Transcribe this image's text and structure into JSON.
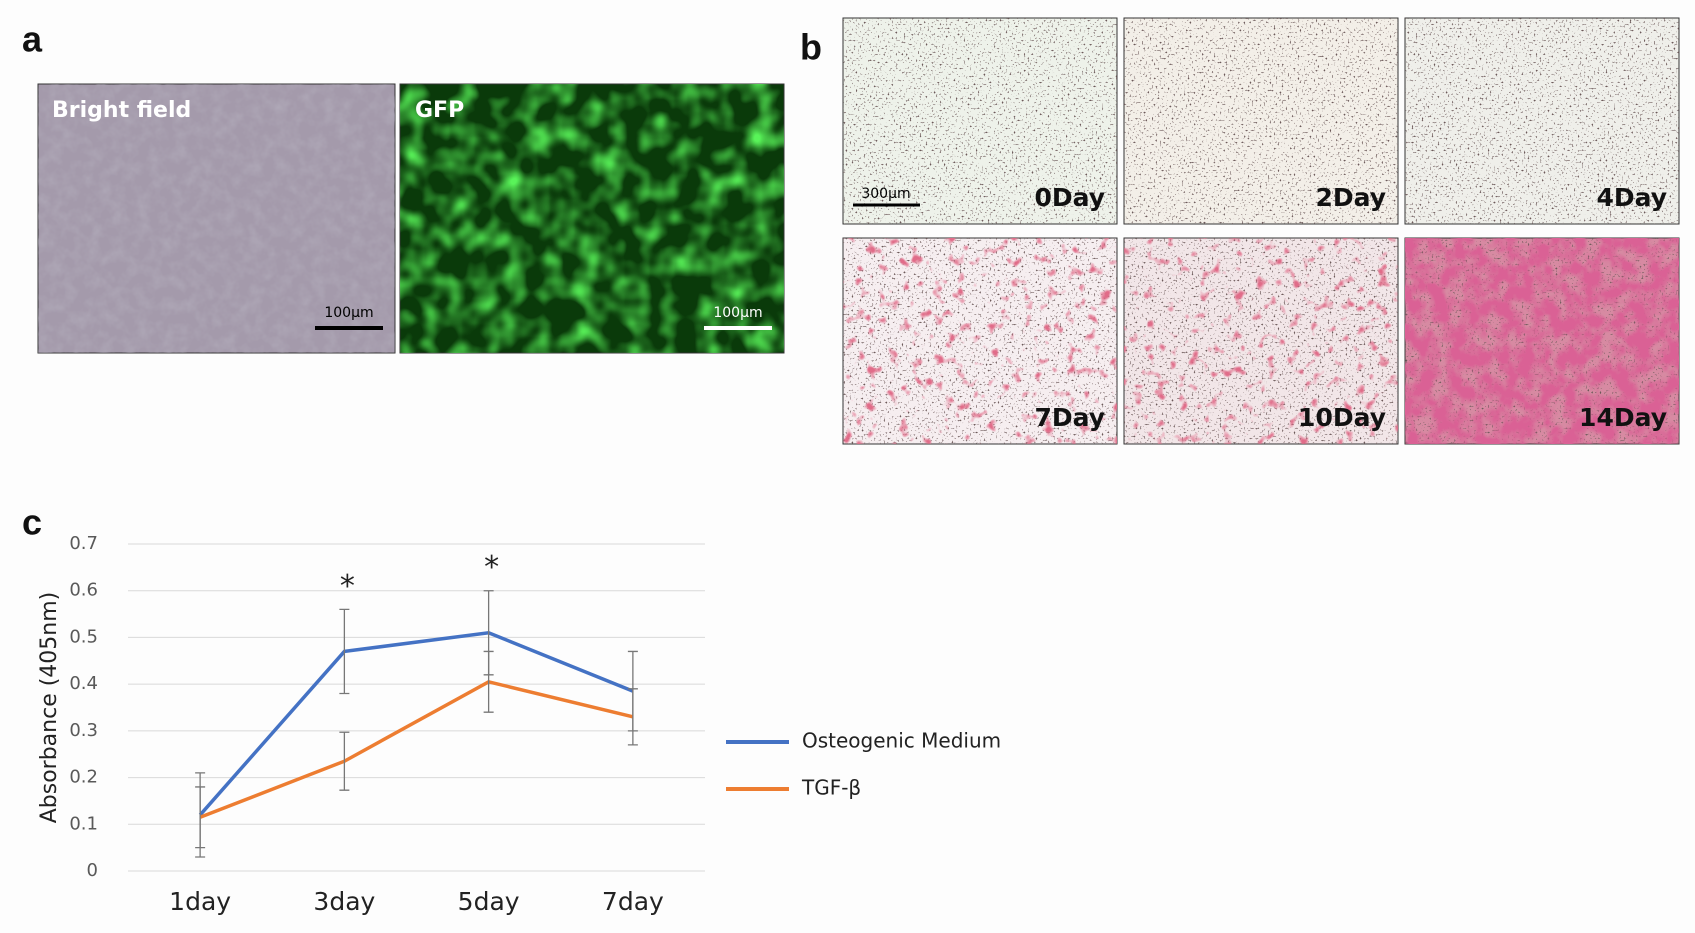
{
  "panel_a": {
    "label": "a",
    "images": [
      {
        "caption": "Bright field",
        "scale_bar": "100µm"
      },
      {
        "caption": "GFP",
        "scale_bar": "100µm"
      }
    ]
  },
  "panel_b": {
    "label": "b",
    "scale_bar": "300µm",
    "images": [
      "0Day",
      "2Day",
      "4Day",
      "7Day",
      "10Day",
      "14Day"
    ]
  },
  "panel_c": {
    "label": "c"
  },
  "chart_data": {
    "type": "line",
    "y_label": "Absorbance (405nm)",
    "categories": [
      "1day",
      "3day",
      "5day",
      "7day"
    ],
    "series": [
      {
        "name": "Osteogenic Medium",
        "color": "#4472c4",
        "values": [
          0.12,
          0.47,
          0.51,
          0.385
        ],
        "errors": [
          0.09,
          0.09,
          0.09,
          0.085
        ]
      },
      {
        "name": "TGF-β",
        "color": "#ed7d31",
        "values": [
          0.115,
          0.235,
          0.405,
          0.33
        ],
        "errors": [
          0.065,
          0.062,
          0.065,
          0.06
        ]
      }
    ],
    "significance": [
      null,
      "*",
      "*",
      null
    ],
    "ylim": [
      0,
      0.7
    ],
    "yticks": [
      0,
      0.1,
      0.2,
      0.3,
      0.4,
      0.5,
      0.6,
      0.7
    ],
    "grid": true,
    "legend": "right"
  }
}
